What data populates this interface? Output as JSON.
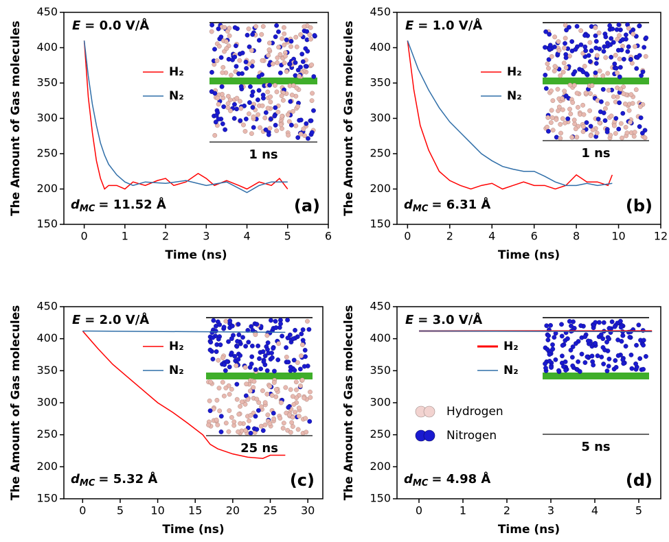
{
  "chart_data": [
    {
      "type": "line",
      "panel": "(a)",
      "field": [
        "E",
        "= 0.0 V/Å"
      ],
      "distance": [
        "d",
        "MC",
        "= 11.52 Å"
      ],
      "inset_label": "1 ns",
      "x_label": "Time (ns)",
      "y_label": "The Amount of Gas molecules",
      "xlim": [
        -0.5,
        6
      ],
      "xticks": [
        0,
        1,
        2,
        3,
        4,
        5,
        6
      ],
      "ylim": [
        150,
        450
      ],
      "yticks": [
        150,
        200,
        250,
        300,
        350,
        400,
        450
      ],
      "series": [
        {
          "name": "H₂",
          "color": "#ff0000",
          "x": [
            0,
            0.1,
            0.2,
            0.3,
            0.4,
            0.5,
            0.6,
            0.8,
            1,
            1.2,
            1.5,
            1.8,
            2,
            2.2,
            2.5,
            2.8,
            3,
            3.2,
            3.5,
            3.8,
            4,
            4.3,
            4.6,
            4.8,
            5
          ],
          "values": [
            410,
            330,
            280,
            240,
            215,
            200,
            205,
            205,
            200,
            210,
            205,
            212,
            215,
            205,
            210,
            222,
            215,
            205,
            212,
            205,
            200,
            210,
            205,
            215,
            200
          ]
        },
        {
          "name": "N₂",
          "color": "#2f6ea8",
          "x": [
            0,
            0.1,
            0.2,
            0.3,
            0.4,
            0.5,
            0.6,
            0.8,
            1,
            1.2,
            1.5,
            2,
            2.5,
            3,
            3.5,
            4,
            4.3,
            4.6,
            5
          ],
          "values": [
            410,
            360,
            320,
            290,
            265,
            248,
            235,
            220,
            210,
            205,
            210,
            208,
            212,
            205,
            210,
            195,
            205,
            210,
            210
          ]
        }
      ]
    },
    {
      "type": "line",
      "panel": "(b)",
      "field": [
        "E",
        "= 1.0 V/Å"
      ],
      "distance": [
        "d",
        "MC",
        "= 6.31 Å"
      ],
      "inset_label": "1 ns",
      "x_label": "Time (ns)",
      "y_label": "The Amount of Gas molecules",
      "xlim": [
        -0.5,
        12
      ],
      "xticks": [
        0,
        2,
        4,
        6,
        8,
        10,
        12
      ],
      "ylim": [
        150,
        450
      ],
      "yticks": [
        150,
        200,
        250,
        300,
        350,
        400,
        450
      ],
      "series": [
        {
          "name": "H₂",
          "color": "#ff0000",
          "x": [
            0,
            0.3,
            0.6,
            1,
            1.5,
            2,
            2.5,
            3,
            3.5,
            4,
            4.5,
            5,
            5.5,
            6,
            6.5,
            7,
            7.5,
            8,
            8.5,
            9,
            9.5,
            9.7
          ],
          "values": [
            410,
            340,
            290,
            255,
            225,
            212,
            205,
            200,
            205,
            208,
            200,
            205,
            210,
            205,
            205,
            200,
            205,
            220,
            210,
            210,
            205,
            220
          ]
        },
        {
          "name": "N₂",
          "color": "#2f6ea8",
          "x": [
            0,
            0.5,
            1,
            1.5,
            2,
            2.5,
            3,
            3.5,
            4,
            4.5,
            5,
            5.5,
            6,
            6.5,
            7,
            7.5,
            8,
            8.5,
            9,
            9.7
          ],
          "values": [
            410,
            370,
            340,
            315,
            295,
            280,
            265,
            250,
            240,
            232,
            228,
            225,
            225,
            218,
            210,
            205,
            205,
            208,
            205,
            208
          ]
        }
      ]
    },
    {
      "type": "line",
      "panel": "(c)",
      "field": [
        "E",
        "= 2.0 V/Å"
      ],
      "distance": [
        "d",
        "MC",
        "= 5.32 Å"
      ],
      "inset_label": "25 ns",
      "x_label": "Time (ns)",
      "y_label": "The Amount of Gas molecules",
      "xlim": [
        -2.5,
        32
      ],
      "xticks": [
        0,
        5,
        10,
        15,
        20,
        25,
        30
      ],
      "ylim": [
        150,
        450
      ],
      "yticks": [
        150,
        200,
        250,
        300,
        350,
        400,
        450
      ],
      "series": [
        {
          "name": "H₂",
          "color": "#ff0000",
          "x": [
            0,
            2,
            4,
            6,
            8,
            10,
            12,
            14,
            16,
            17,
            18,
            20,
            22,
            24,
            25,
            27
          ],
          "values": [
            412,
            385,
            360,
            340,
            320,
            300,
            285,
            268,
            250,
            235,
            228,
            220,
            215,
            213,
            218,
            218
          ]
        },
        {
          "name": "N₂",
          "color": "#2f6ea8",
          "x": [
            0,
            27
          ],
          "values": [
            412,
            410
          ]
        }
      ]
    },
    {
      "type": "line",
      "panel": "(d)",
      "field": [
        "E",
        "= 3.0 V/Å"
      ],
      "distance": [
        "d",
        "MC",
        "= 4.98 Å"
      ],
      "inset_label": "5 ns",
      "legend_extra": [
        "Hydrogen",
        "Nitrogen"
      ],
      "x_label": "Time (ns)",
      "y_label": "The Amount of Gas molecules",
      "xlim": [
        -0.5,
        5.5
      ],
      "xticks": [
        0,
        1,
        2,
        3,
        4,
        5
      ],
      "ylim": [
        150,
        450
      ],
      "yticks": [
        150,
        200,
        250,
        300,
        350,
        400,
        450
      ],
      "series": [
        {
          "name": "H₂",
          "color": "#ff0000",
          "x": [
            0,
            5.3
          ],
          "values": [
            412,
            412
          ]
        },
        {
          "name": "N₂",
          "color": "#2f6ea8",
          "x": [
            0,
            5.3
          ],
          "values": [
            412,
            411
          ]
        }
      ]
    }
  ]
}
